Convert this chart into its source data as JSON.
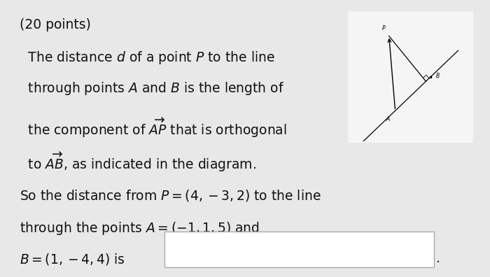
{
  "background_color": "#e8e8e8",
  "white_bg": "#f0f0f0",
  "text_color": "#111111",
  "title_line": "(20 points)",
  "line1": "  The distance $d$ of a point $P$ to the line",
  "line2": "  through points $A$ and $B$ is the length of",
  "line3": "  the component of $\\overrightarrow{AP}$ that is orthogonal",
  "line4": "  to $\\overrightarrow{AB}$, as indicated in the diagram.",
  "line5": "So the distance from $P = (4, -3, 2)$ to the line",
  "line6": "through the points $A = (-1, 1, 5)$ and",
  "line7": "$B = (1, -4, 4)$ is",
  "fontsize": 13.5
}
